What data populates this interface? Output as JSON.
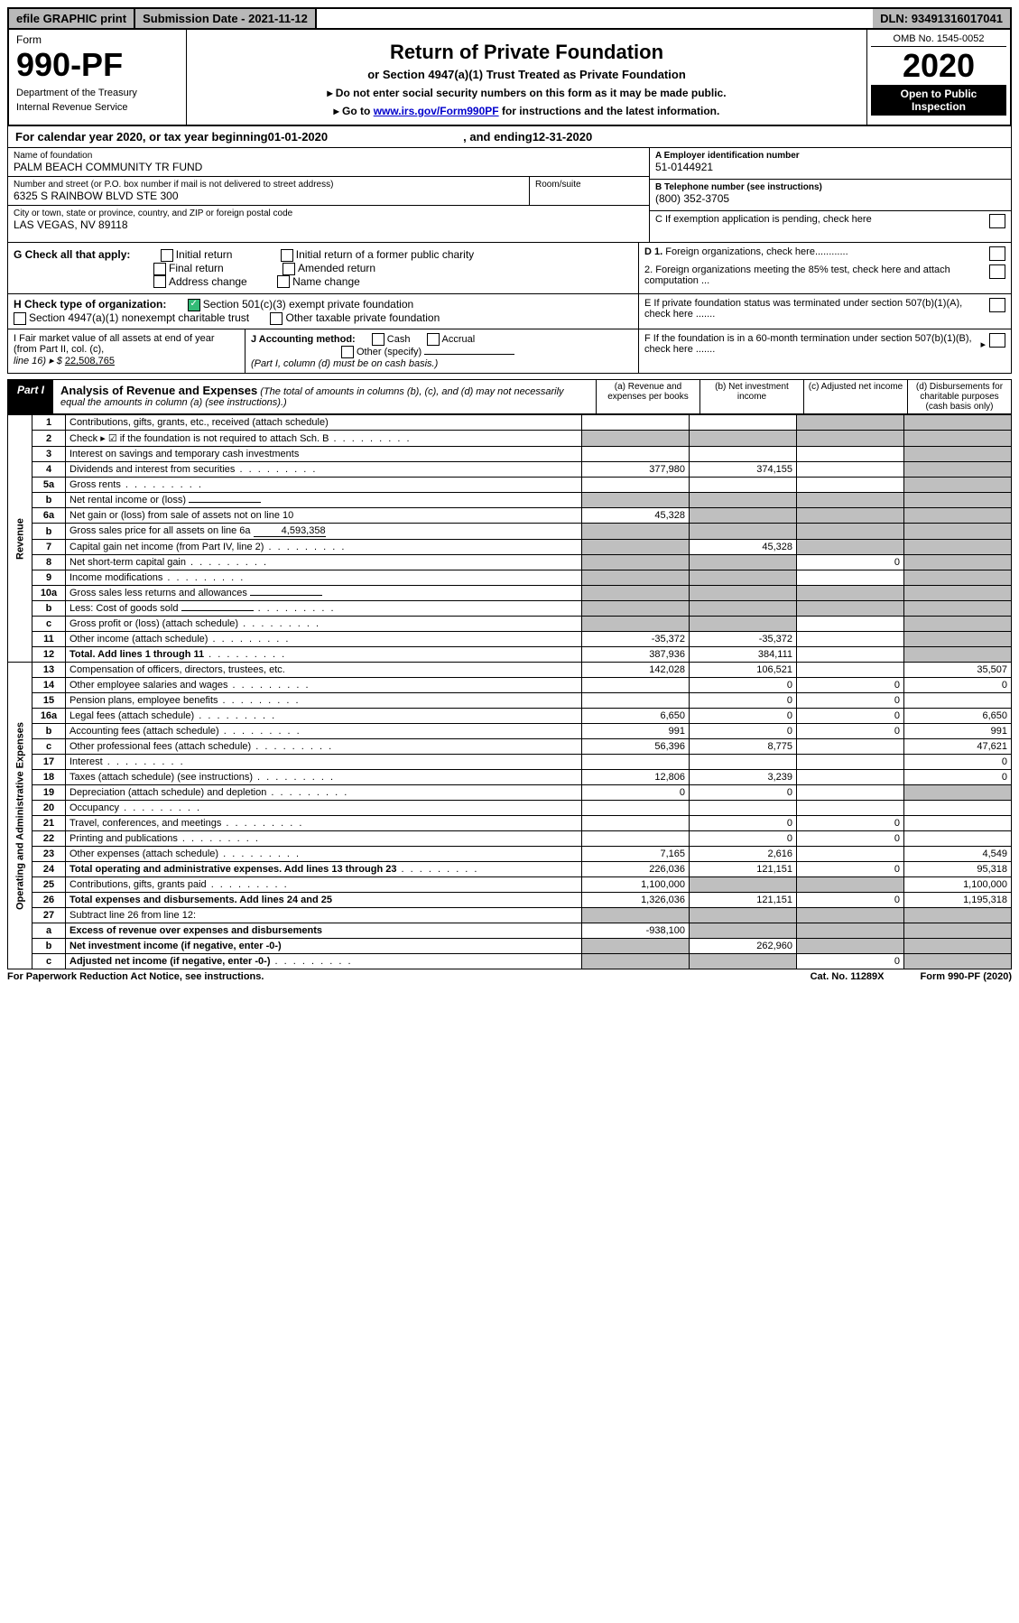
{
  "topbar": {
    "efile": "efile GRAPHIC print",
    "submission_label": "Submission Date - ",
    "submission_date": "2021-11-12",
    "dln_label": "DLN: ",
    "dln": "93491316017041"
  },
  "header": {
    "form_label": "Form",
    "form_number": "990-PF",
    "dept1": "Department of the Treasury",
    "dept2": "Internal Revenue Service",
    "title": "Return of Private Foundation",
    "subtitle": "or Section 4947(a)(1) Trust Treated as Private Foundation",
    "note1": "▸ Do not enter social security numbers on this form as it may be made public.",
    "note2_pre": "▸ Go to ",
    "note2_link": "www.irs.gov/Form990PF",
    "note2_post": " for instructions and the latest information.",
    "omb": "OMB No. 1545-0052",
    "year": "2020",
    "open": "Open to Public Inspection"
  },
  "calendar": {
    "text_pre": "For calendar year 2020, or tax year beginning ",
    "begin": "01-01-2020",
    "mid": " , and ending ",
    "end": "12-31-2020"
  },
  "identity": {
    "name_label": "Name of foundation",
    "name": "PALM BEACH COMMUNITY TR FUND",
    "addr_label": "Number and street (or P.O. box number if mail is not delivered to street address)",
    "addr": "6325 S RAINBOW BLVD STE 300",
    "room_label": "Room/suite",
    "city_label": "City or town, state or province, country, and ZIP or foreign postal code",
    "city": "LAS VEGAS, NV  89118",
    "ein_label": "A Employer identification number",
    "ein": "51-0144921",
    "phone_label": "B Telephone number (see instructions)",
    "phone": "(800) 352-3705",
    "c_label": "C If exemption application is pending, check here",
    "d1": "D 1. Foreign organizations, check here............",
    "d2": "2. Foreign organizations meeting the 85% test, check here and attach computation ...",
    "e": "E  If private foundation status was terminated under section 507(b)(1)(A), check here .......",
    "f": "F  If the foundation is in a 60-month termination under section 507(b)(1)(B), check here .......",
    "g_label": "G Check all that apply:",
    "g_opts": [
      "Initial return",
      "Final return",
      "Address change",
      "Initial return of a former public charity",
      "Amended return",
      "Name change"
    ],
    "h_label": "H Check type of organization:",
    "h1": "Section 501(c)(3) exempt private foundation",
    "h2": "Section 4947(a)(1) nonexempt charitable trust",
    "h3": "Other taxable private foundation",
    "i_label": "I Fair market value of all assets at end of year (from Part II, col. (c),",
    "i_line": "line 16) ▸ $ ",
    "i_val": "22,508,765",
    "j_label": "J Accounting method:",
    "j_opts": [
      "Cash",
      "Accrual"
    ],
    "j_other": "Other (specify)",
    "j_note": "(Part I, column (d) must be on cash basis.)"
  },
  "part1": {
    "label": "Part I",
    "title": "Analysis of Revenue and Expenses",
    "title_note": " (The total of amounts in columns (b), (c), and (d) may not necessarily equal the amounts in column (a) (see instructions).)",
    "cols": {
      "a": "(a)  Revenue and expenses per books",
      "b": "(b)  Net investment income",
      "c": "(c)  Adjusted net income",
      "d": "(d)  Disbursements for charitable purposes (cash basis only)"
    },
    "side_labels": {
      "rev": "Revenue",
      "exp": "Operating and Administrative Expenses"
    },
    "rows": [
      {
        "n": "1",
        "desc": "Contributions, gifts, grants, etc., received (attach schedule)",
        "a": "",
        "b": "",
        "c": "shade",
        "d": "shade"
      },
      {
        "n": "2",
        "desc": "Check ▸ ☑ if the foundation is not required to attach Sch. B",
        "a": "shade",
        "b": "shade",
        "c": "shade",
        "d": "shade",
        "dots": true
      },
      {
        "n": "3",
        "desc": "Interest on savings and temporary cash investments",
        "a": "",
        "b": "",
        "c": "",
        "d": "shade"
      },
      {
        "n": "4",
        "desc": "Dividends and interest from securities",
        "a": "377,980",
        "b": "374,155",
        "c": "",
        "d": "shade",
        "dots": true
      },
      {
        "n": "5a",
        "desc": "Gross rents",
        "a": "",
        "b": "",
        "c": "",
        "d": "shade",
        "dots": true
      },
      {
        "n": "b",
        "desc": "Net rental income or (loss)",
        "a": "shade",
        "b": "shade",
        "c": "shade",
        "d": "shade",
        "inline": ""
      },
      {
        "n": "6a",
        "desc": "Net gain or (loss) from sale of assets not on line 10",
        "a": "45,328",
        "b": "shade",
        "c": "shade",
        "d": "shade"
      },
      {
        "n": "b",
        "desc": "Gross sales price for all assets on line 6a",
        "a": "shade",
        "b": "shade",
        "c": "shade",
        "d": "shade",
        "inline": "4,593,358"
      },
      {
        "n": "7",
        "desc": "Capital gain net income (from Part IV, line 2)",
        "a": "shade",
        "b": "45,328",
        "c": "shade",
        "d": "shade",
        "dots": true
      },
      {
        "n": "8",
        "desc": "Net short-term capital gain",
        "a": "shade",
        "b": "shade",
        "c": "0",
        "d": "shade",
        "dots": true
      },
      {
        "n": "9",
        "desc": "Income modifications",
        "a": "shade",
        "b": "shade",
        "c": "",
        "d": "shade",
        "dots": true
      },
      {
        "n": "10a",
        "desc": "Gross sales less returns and allowances",
        "a": "shade",
        "b": "shade",
        "c": "shade",
        "d": "shade",
        "inline": ""
      },
      {
        "n": "b",
        "desc": "Less: Cost of goods sold",
        "a": "shade",
        "b": "shade",
        "c": "shade",
        "d": "shade",
        "inline": "",
        "dots": true
      },
      {
        "n": "c",
        "desc": "Gross profit or (loss) (attach schedule)",
        "a": "shade",
        "b": "shade",
        "c": "",
        "d": "shade",
        "dots": true
      },
      {
        "n": "11",
        "desc": "Other income (attach schedule)",
        "a": "-35,372",
        "b": "-35,372",
        "c": "",
        "d": "shade",
        "dots": true
      },
      {
        "n": "12",
        "desc": "Total. Add lines 1 through 11",
        "bold": true,
        "a": "387,936",
        "b": "384,111",
        "c": "",
        "d": "shade",
        "dots": true
      },
      {
        "n": "13",
        "desc": "Compensation of officers, directors, trustees, etc.",
        "a": "142,028",
        "b": "106,521",
        "c": "",
        "d": "35,507"
      },
      {
        "n": "14",
        "desc": "Other employee salaries and wages",
        "a": "",
        "b": "0",
        "c": "0",
        "d": "0",
        "dots": true
      },
      {
        "n": "15",
        "desc": "Pension plans, employee benefits",
        "a": "",
        "b": "0",
        "c": "0",
        "d": "",
        "dots": true
      },
      {
        "n": "16a",
        "desc": "Legal fees (attach schedule)",
        "a": "6,650",
        "b": "0",
        "c": "0",
        "d": "6,650",
        "dots": true
      },
      {
        "n": "b",
        "desc": "Accounting fees (attach schedule)",
        "a": "991",
        "b": "0",
        "c": "0",
        "d": "991",
        "dots": true
      },
      {
        "n": "c",
        "desc": "Other professional fees (attach schedule)",
        "a": "56,396",
        "b": "8,775",
        "c": "",
        "d": "47,621",
        "dots": true
      },
      {
        "n": "17",
        "desc": "Interest",
        "a": "",
        "b": "",
        "c": "",
        "d": "0",
        "dots": true
      },
      {
        "n": "18",
        "desc": "Taxes (attach schedule) (see instructions)",
        "a": "12,806",
        "b": "3,239",
        "c": "",
        "d": "0",
        "dots": true
      },
      {
        "n": "19",
        "desc": "Depreciation (attach schedule) and depletion",
        "a": "0",
        "b": "0",
        "c": "",
        "d": "shade",
        "dots": true
      },
      {
        "n": "20",
        "desc": "Occupancy",
        "a": "",
        "b": "",
        "c": "",
        "d": "",
        "dots": true
      },
      {
        "n": "21",
        "desc": "Travel, conferences, and meetings",
        "a": "",
        "b": "0",
        "c": "0",
        "d": "",
        "dots": true
      },
      {
        "n": "22",
        "desc": "Printing and publications",
        "a": "",
        "b": "0",
        "c": "0",
        "d": "",
        "dots": true
      },
      {
        "n": "23",
        "desc": "Other expenses (attach schedule)",
        "a": "7,165",
        "b": "2,616",
        "c": "",
        "d": "4,549",
        "dots": true
      },
      {
        "n": "24",
        "desc": "Total operating and administrative expenses. Add lines 13 through 23",
        "bold": true,
        "a": "226,036",
        "b": "121,151",
        "c": "0",
        "d": "95,318",
        "dots": true
      },
      {
        "n": "25",
        "desc": "Contributions, gifts, grants paid",
        "a": "1,100,000",
        "b": "shade",
        "c": "shade",
        "d": "1,100,000",
        "dots": true
      },
      {
        "n": "26",
        "desc": "Total expenses and disbursements. Add lines 24 and 25",
        "bold": true,
        "a": "1,326,036",
        "b": "121,151",
        "c": "0",
        "d": "1,195,318"
      },
      {
        "n": "27",
        "desc": "Subtract line 26 from line 12:",
        "a": "shade",
        "b": "shade",
        "c": "shade",
        "d": "shade"
      },
      {
        "n": "a",
        "desc": "Excess of revenue over expenses and disbursements",
        "bold": true,
        "a": "-938,100",
        "b": "shade",
        "c": "shade",
        "d": "shade"
      },
      {
        "n": "b",
        "desc": "Net investment income (if negative, enter -0-)",
        "bold": true,
        "a": "shade",
        "b": "262,960",
        "c": "shade",
        "d": "shade"
      },
      {
        "n": "c",
        "desc": "Adjusted net income (if negative, enter -0-)",
        "bold": true,
        "a": "shade",
        "b": "shade",
        "c": "0",
        "d": "shade",
        "dots": true
      }
    ]
  },
  "footer": {
    "left": "For Paperwork Reduction Act Notice, see instructions.",
    "mid": "Cat. No. 11289X",
    "right": "Form 990-PF (2020)"
  }
}
